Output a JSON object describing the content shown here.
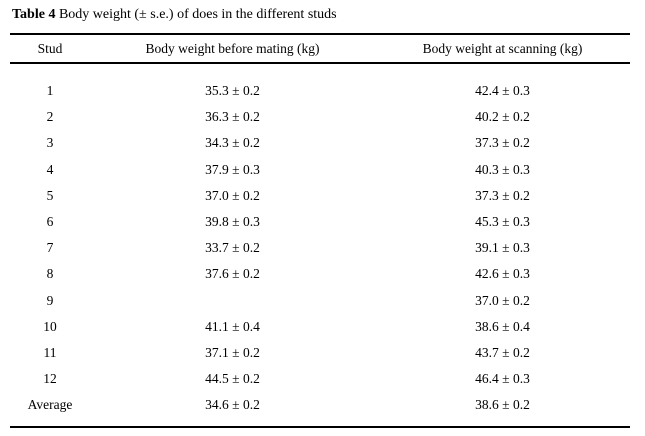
{
  "page": {
    "background": "#ffffff",
    "text_color": "#000000",
    "rule_color": "#000000"
  },
  "caption": {
    "label": "Table 4",
    "text": " Body weight (± s.e.) of does in the different studs"
  },
  "table": {
    "headers": {
      "stud": "Stud",
      "before": "Body weight before mating (kg)",
      "scanning": "Body weight at scanning (kg)"
    },
    "rows": [
      {
        "stud": "1",
        "before": "35.3 ± 0.2",
        "scanning": "42.4 ± 0.3"
      },
      {
        "stud": "2",
        "before": "36.3 ± 0.2",
        "scanning": "40.2 ± 0.2"
      },
      {
        "stud": "3",
        "before": "34.3 ± 0.2",
        "scanning": "37.3 ± 0.2"
      },
      {
        "stud": "4",
        "before": "37.9 ± 0.3",
        "scanning": "40.3 ± 0.3"
      },
      {
        "stud": "5",
        "before": "37.0 ± 0.2",
        "scanning": "37.3 ± 0.2"
      },
      {
        "stud": "6",
        "before": "39.8 ± 0.3",
        "scanning": "45.3 ± 0.3"
      },
      {
        "stud": "7",
        "before": "33.7 ± 0.2",
        "scanning": "39.1 ± 0.3"
      },
      {
        "stud": "8",
        "before": "37.6 ± 0.2",
        "scanning": "42.6 ± 0.3"
      },
      {
        "stud": "9",
        "before": "",
        "scanning": "37.0 ± 0.2"
      },
      {
        "stud": "10",
        "before": "41.1 ± 0.4",
        "scanning": "38.6 ± 0.4"
      },
      {
        "stud": "11",
        "before": "37.1 ± 0.2",
        "scanning": "43.7 ± 0.2"
      },
      {
        "stud": "12",
        "before": "44.5 ± 0.2",
        "scanning": "46.4 ± 0.3"
      },
      {
        "stud": "Average",
        "before": "34.6 ± 0.2",
        "scanning": "38.6 ± 0.2"
      }
    ]
  }
}
